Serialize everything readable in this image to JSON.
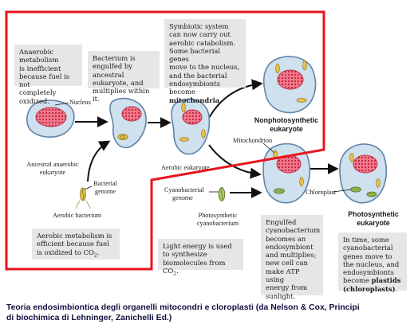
{
  "boxes": {
    "anaerobic": [
      "Anaerobic",
      "metabolism",
      "is inefficient",
      "because fuel is not",
      "completely oxidized."
    ],
    "bacterium_engulfed": [
      "Bacterium is",
      "engulfed by ancestral",
      "eukaryote, and",
      "multiplies within it."
    ],
    "symbiotic": [
      "Symbiotic system",
      "can now carry out",
      "aerobic catabolism.",
      "Some bacterial genes",
      "move to the nucleus,",
      "and the bacterial",
      "endosymbionts become"
    ],
    "symbiotic_bold": "mitochondria",
    "symbiotic_end": ".",
    "aerobic_metab": [
      "Aerobic metabolism is",
      "efficient because fuel",
      "is oxidized to CO"
    ],
    "aerobic_metab_sub": "2",
    "aerobic_metab_end": ".",
    "light_energy": [
      "Light energy is used",
      "to synthesize",
      "biomolecules from CO"
    ],
    "light_energy_sub": "2",
    "light_energy_end": ".",
    "engulfed_cyano": [
      "Engulfed",
      "cyanobacterium",
      "becomes an",
      "endosymbiont",
      "and multiplies;",
      "new cell can",
      "make ATP using",
      "energy from",
      "sunlight."
    ],
    "in_time": [
      "In time, some",
      "cyanobacterial",
      "genes move to",
      "the nucleus, and",
      "endosymbionts",
      "become"
    ],
    "in_time_bold1": "plastids",
    "in_time_bold2": "(chloroplasts)",
    "in_time_end": "."
  },
  "labels": {
    "nucleus": "Nucleus",
    "ancestral_1": "Ancestral anaerobic",
    "ancestral_2": "eukaryote",
    "bacterial_genome_1": "Bacterial",
    "bacterial_genome_2": "genome",
    "aerobic_bacterium": "Aerobic bacterium",
    "aerobic_eukaryote": "Aerobic eukaryote",
    "nonphoto_1": "Nonphotosynthetic",
    "nonphoto_2": "eukaryote",
    "mitochondrion": "Mitochondrion",
    "cyano_genome_1": "Cyanobacterial",
    "cyano_genome_2": "genome",
    "photo_cyano_1": "Photosynthetic",
    "photo_cyano_2": "cyanobacterium",
    "chloroplast": "Chloroplast",
    "photo_euk_1": "Photosynthetic",
    "photo_euk_2": "eukaryote"
  },
  "caption": [
    "Teoria endosimbiontica degli organelli mitocondri e cloroplasti (da Nelson & Cox, Principi",
    "di biochimica di Lehninger, Zanichelli Ed.)"
  ],
  "colors": {
    "highlight": "#e8141c",
    "cell_fill": "#cfe0ee",
    "cell_stroke": "#5f84a8",
    "nucleus": "#e8506a",
    "mito": "#e2c24a",
    "chloro": "#8cae4c",
    "box": "#e6e6e6"
  }
}
